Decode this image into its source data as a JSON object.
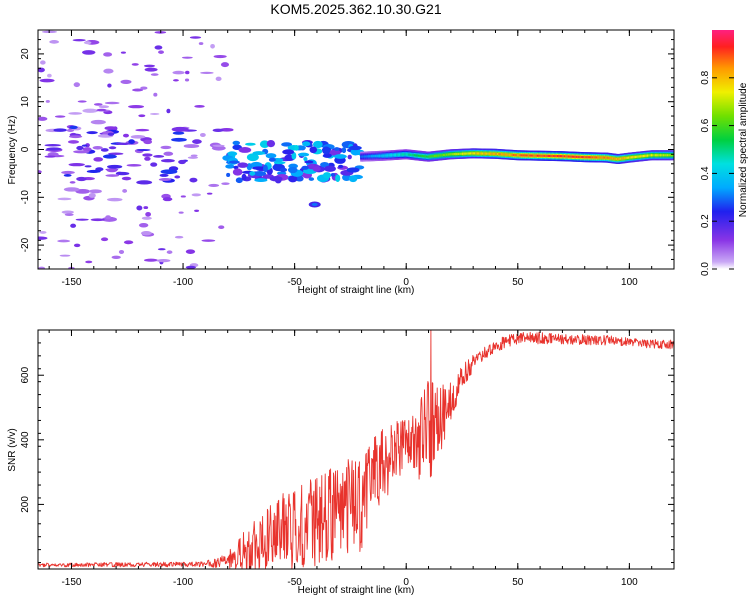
{
  "figure": {
    "title": "KOM5.2025.362.10.30.G21"
  },
  "chart_data": [
    {
      "type": "heatmap",
      "title": "KOM5.2025.362.10.30.G21",
      "xlabel": "Height of straight line (km)",
      "ylabel": "Frequency (Hz)",
      "xlim": [
        -165,
        120
      ],
      "ylim": [
        -25,
        25
      ],
      "xticks": [
        -150,
        -100,
        -50,
        0,
        50,
        100
      ],
      "yticks": [
        -20,
        -10,
        0,
        10,
        20
      ],
      "grid": false,
      "colorbar": {
        "label": "Normalized spectral amplitude",
        "range": [
          0.0,
          1.0
        ],
        "ticks": [
          0.0,
          0.2,
          0.4,
          0.6,
          0.8
        ],
        "tick_labels": [
          "0.0",
          "0.2",
          "0.4",
          "0.6",
          "0.8"
        ],
        "colormap": "rainbow"
      },
      "features": [
        {
          "description": "scattered weak noise patches",
          "x_range": [
            -165,
            -80
          ],
          "freq_range": [
            -25,
            25
          ],
          "amplitude": 0.1
        },
        {
          "description": "clustered blobs",
          "x_range": [
            -80,
            -20
          ],
          "freq_range": [
            -12,
            4
          ],
          "amplitude": 0.35
        },
        {
          "description": "narrow band tone",
          "x_range": [
            -20,
            120
          ],
          "freq_center": -1.5,
          "amplitude_peak": 0.95
        }
      ],
      "band": {
        "x": [
          -20,
          -10,
          0,
          10,
          20,
          30,
          40,
          50,
          60,
          70,
          80,
          90,
          95,
          100,
          110,
          120
        ],
        "freq": [
          -1.5,
          -1.3,
          -1.0,
          -1.5,
          -1.0,
          -0.8,
          -0.9,
          -1.2,
          -1.3,
          -1.4,
          -1.6,
          -1.7,
          -2.0,
          -1.7,
          -1.2,
          -1.2
        ],
        "amp": [
          0.3,
          0.4,
          0.5,
          0.6,
          0.7,
          0.8,
          0.85,
          0.9,
          0.95,
          0.95,
          0.95,
          0.9,
          0.85,
          0.8,
          0.75,
          0.7
        ]
      }
    },
    {
      "type": "line",
      "xlabel": "Height of straight line (km)",
      "ylabel": "SNR (v/v)",
      "xlim": [
        -165,
        120
      ],
      "ylim": [
        0,
        740
      ],
      "xticks": [
        -150,
        -100,
        -50,
        0,
        50,
        100
      ],
      "yticks": [
        200,
        400,
        600
      ],
      "grid": false,
      "series": [
        {
          "name": "SNR",
          "color": "#e8332d",
          "envelope": {
            "x": [
              -165,
              -90,
              -80,
              -70,
              -60,
              -50,
              -40,
              -30,
              -20,
              -15,
              -10,
              -5,
              0,
              5,
              10,
              15,
              20,
              25,
              30,
              35,
              40,
              45,
              50,
              60,
              70,
              80,
              90,
              100,
              110,
              120
            ],
            "center": [
              12,
              15,
              25,
              60,
              100,
              130,
              150,
              180,
              200,
              300,
              320,
              360,
              400,
              390,
              420,
              460,
              520,
              590,
              640,
              670,
              690,
              705,
              715,
              715,
              712,
              710,
              708,
              702,
              698,
              695
            ],
            "spread": [
              6,
              8,
              30,
              80,
              110,
              130,
              140,
              150,
              160,
              110,
              120,
              110,
              60,
              110,
              170,
              120,
              60,
              40,
              25,
              20,
              20,
              18,
              18,
              18,
              16,
              16,
              15,
              14,
              14,
              14
            ]
          },
          "peak": {
            "x": 11,
            "y": 745
          }
        }
      ]
    }
  ]
}
